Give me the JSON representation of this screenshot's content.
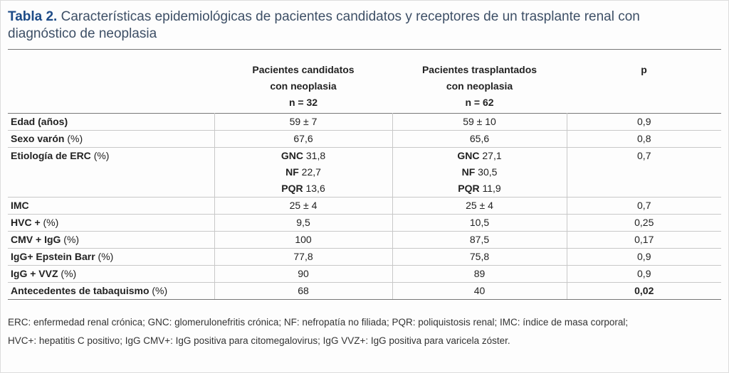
{
  "title": {
    "label": "Tabla 2.",
    "lines": [
      "Características epidemiológicas de pacientes candidatos y receptores de un trasplante renal con",
      "diagnóstico de neoplasia"
    ]
  },
  "table": {
    "header": [
      {
        "lines": [
          "Pacientes candidatos",
          "con neoplasia"
        ],
        "n": "n = 32"
      },
      {
        "lines": [
          "Pacientes trasplantados",
          "con neoplasia"
        ],
        "n": "n = 62"
      },
      {
        "lines": [
          "p"
        ]
      }
    ],
    "rows": [
      {
        "label": "Edad (años)",
        "cells": [
          "59 ± 7",
          "59 ± 10",
          "0,9"
        ]
      },
      {
        "label": "Sexo varón",
        "unit": "(%)",
        "cells": [
          "67,6",
          "65,6",
          "0,8"
        ]
      },
      {
        "label": "Etiología de ERC",
        "unit": "(%)",
        "groups": [
          [
            [
              "GNC",
              "31,8"
            ],
            [
              "NF",
              "22,7"
            ],
            [
              "PQR",
              "13,6"
            ]
          ],
          [
            [
              "GNC",
              "27,1"
            ],
            [
              "NF",
              "30,5"
            ],
            [
              "PQR",
              "11,9"
            ]
          ]
        ],
        "p": "0,7"
      },
      {
        "label": "IMC",
        "cells": [
          "25 ± 4",
          "25 ± 4",
          "0,7"
        ]
      },
      {
        "label": "HVC +",
        "unit": "(%)",
        "cells": [
          "9,5",
          "10,5",
          "0,25"
        ]
      },
      {
        "label": "CMV + IgG",
        "unit": "(%)",
        "cells": [
          "100",
          "87,5",
          "0,17"
        ]
      },
      {
        "label": "IgG+ Epstein Barr",
        "unit": "(%)",
        "cells": [
          "77,8",
          "75,8",
          "0,9"
        ]
      },
      {
        "label": "IgG + VVZ",
        "unit": "(%)",
        "cells": [
          "90",
          "89",
          "0,9"
        ]
      },
      {
        "label": "Antecedentes de tabaquismo",
        "unit": "(%)",
        "cells": [
          "68",
          "40",
          "0,02"
        ],
        "p_bold": true
      }
    ]
  },
  "footnote": [
    "ERC: enfermedad renal crónica; GNC: glomerulonefritis crónica; NF: nefropatía no filiada; PQR: poliquistosis renal; IMC: índice de masa corporal;",
    "HVC+: hepatitis C positivo; IgG CMV+: IgG positiva para citomegalovirus; IgG VVZ+: IgG positiva para varicela zóster."
  ]
}
